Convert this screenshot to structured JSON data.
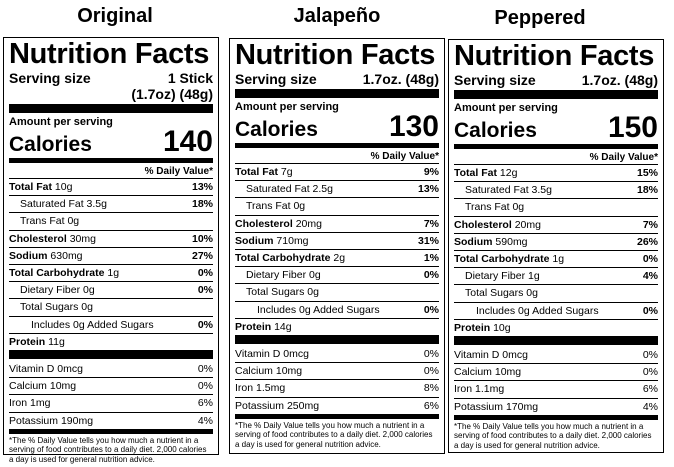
{
  "labels": [
    {
      "flavor": "Original",
      "title": "Nutrition Facts",
      "serving_label": "Serving size",
      "serving_value": "1 Stick (1.7oz) (48g)",
      "amount_per_serving": "Amount per serving",
      "calories_label": "Calories",
      "calories": "140",
      "dv_header": "% Daily Value*",
      "total_fat": "10g",
      "total_fat_dv": "13%",
      "sat_fat": "3.5g",
      "sat_fat_dv": "18%",
      "trans_fat": "0g",
      "cholesterol": "30mg",
      "cholesterol_dv": "10%",
      "sodium": "630mg",
      "sodium_dv": "27%",
      "carb": "1g",
      "carb_dv": "0%",
      "fiber": "0g",
      "fiber_dv": "0%",
      "sugars": "0g",
      "added_sugars": "0g",
      "added_sugars_dv": "0%",
      "protein": "11g",
      "vit_d": "0mcg",
      "vit_d_dv": "0%",
      "calcium": "10mg",
      "calcium_dv": "0%",
      "iron": "1mg",
      "iron_dv": "6%",
      "potassium": "190mg",
      "potassium_dv": "4%",
      "footnote": "*The % Daily Value tells you how much a nutrient in a serving of food contributes to a daily diet. 2,000 calories a day is used for general nutrition advice."
    },
    {
      "flavor": "Jalapeño",
      "title": "Nutrition Facts",
      "serving_label": "Serving size",
      "serving_value": "1.7oz. (48g)",
      "amount_per_serving": "Amount per serving",
      "calories_label": "Calories",
      "calories": "130",
      "dv_header": "% Daily Value*",
      "total_fat": "7g",
      "total_fat_dv": "9%",
      "sat_fat": "2.5g",
      "sat_fat_dv": "13%",
      "trans_fat": "0g",
      "cholesterol": "20mg",
      "cholesterol_dv": "7%",
      "sodium": "710mg",
      "sodium_dv": "31%",
      "carb": "2g",
      "carb_dv": "1%",
      "fiber": "0g",
      "fiber_dv": "0%",
      "sugars": "0g",
      "added_sugars": "0g",
      "added_sugars_dv": "0%",
      "protein": "14g",
      "vit_d": "0mcg",
      "vit_d_dv": "0%",
      "calcium": "10mg",
      "calcium_dv": "0%",
      "iron": "1.5mg",
      "iron_dv": "8%",
      "potassium": "250mg",
      "potassium_dv": "6%",
      "footnote": "*The % Daily Value tells you how much a nutrient in a serving of food contributes to a daily diet. 2,000 calories a day is used for general nutrition advice."
    },
    {
      "flavor": "Peppered",
      "title": "Nutrition Facts",
      "serving_label": "Serving size",
      "serving_value": "1.7oz. (48g)",
      "amount_per_serving": "Amount per serving",
      "calories_label": "Calories",
      "calories": "150",
      "dv_header": "% Daily Value*",
      "total_fat": "12g",
      "total_fat_dv": "15%",
      "sat_fat": "3.5g",
      "sat_fat_dv": "18%",
      "trans_fat": "0g",
      "cholesterol": "20mg",
      "cholesterol_dv": "7%",
      "sodium": "590mg",
      "sodium_dv": "26%",
      "carb": "1g",
      "carb_dv": "0%",
      "fiber": "1g",
      "fiber_dv": "4%",
      "sugars": "0g",
      "added_sugars": "0g",
      "added_sugars_dv": "0%",
      "protein": "10g",
      "vit_d": "0mcg",
      "vit_d_dv": "0%",
      "calcium": "10mg",
      "calcium_dv": "0%",
      "iron": "1.1mg",
      "iron_dv": "6%",
      "potassium": "170mg",
      "potassium_dv": "4%",
      "footnote": "*The % Daily Value tells you how much a nutrient in a serving of food contributes to a daily diet. 2,000 calories a day is used for general nutrition advice."
    }
  ],
  "row_labels": {
    "total_fat": "Total Fat",
    "sat_fat": "Saturated Fat",
    "trans_fat": "Trans Fat",
    "cholesterol": "Cholesterol",
    "sodium": "Sodium",
    "carb": "Total Carbohydrate",
    "fiber": "Dietary Fiber",
    "sugars": "Total Sugars",
    "added_sugars_pre": "Includes",
    "added_sugars_post": "Added Sugars",
    "protein": "Protein",
    "vit_d": "Vitamin D",
    "calcium": "Calcium",
    "iron": "Iron",
    "potassium": "Potassium"
  }
}
